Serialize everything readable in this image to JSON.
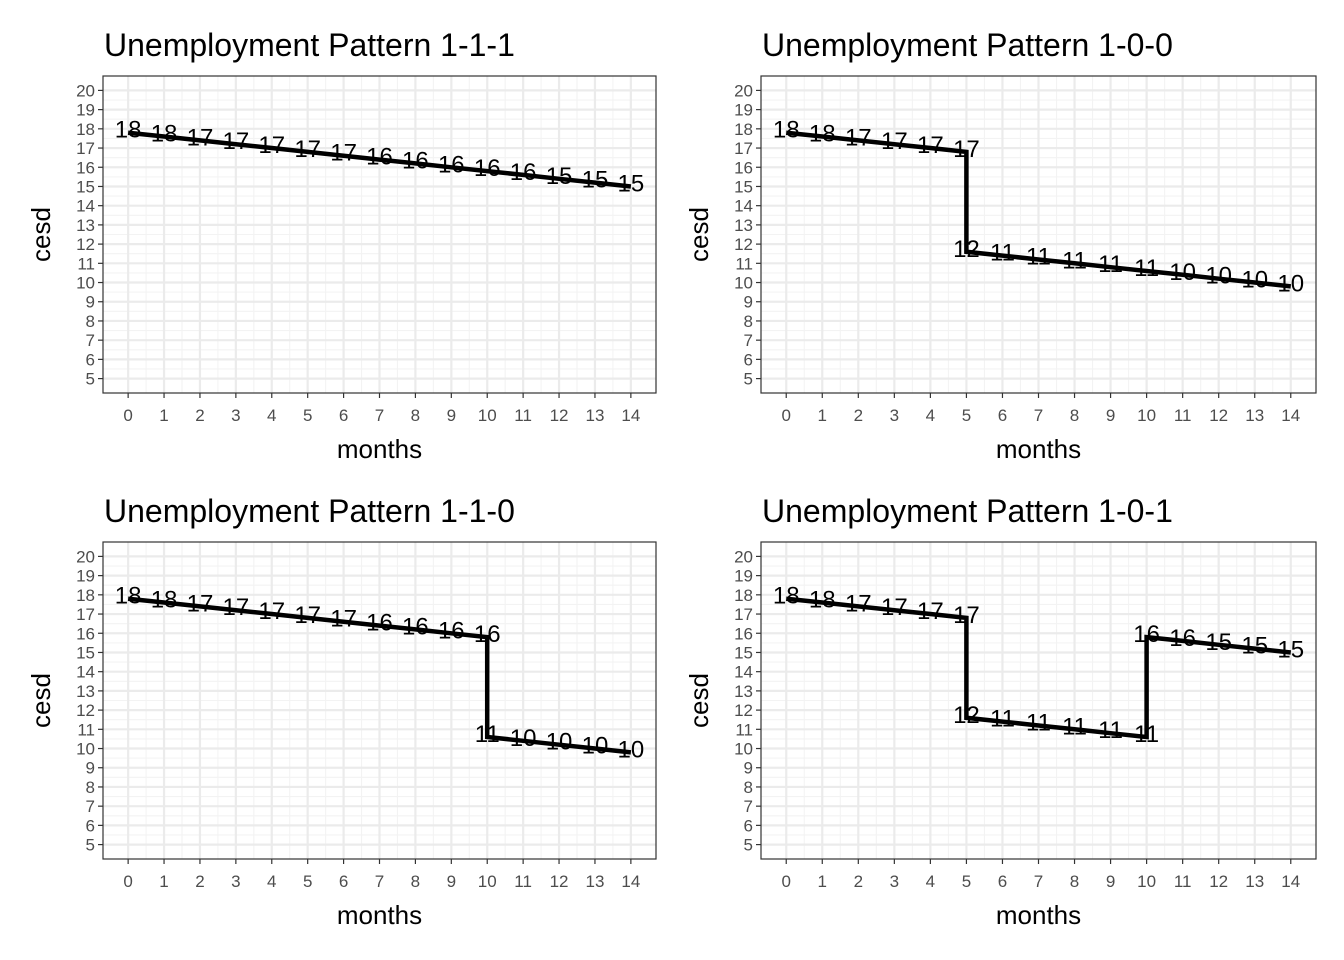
{
  "chart_data": [
    {
      "type": "line",
      "title": "Unemployment Pattern 1-1-1",
      "xlabel": "months",
      "ylabel": "cesd",
      "xlim": [
        0,
        14
      ],
      "ylim": [
        5,
        20
      ],
      "xticks": [
        "0",
        "1",
        "2",
        "3",
        "4",
        "5",
        "6",
        "7",
        "8",
        "9",
        "10",
        "11",
        "12",
        "13",
        "14"
      ],
      "yticks": [
        "5",
        "6",
        "7",
        "8",
        "9",
        "10",
        "11",
        "12",
        "13",
        "14",
        "15",
        "16",
        "17",
        "18",
        "19",
        "20"
      ],
      "grid": true,
      "series": [
        {
          "segments": [
            {
              "x": [
                0,
                1,
                2,
                3,
                4,
                5,
                6,
                7,
                8,
                9,
                10,
                11,
                12,
                13,
                14
              ],
              "y": [
                17.8,
                17.6,
                17.4,
                17.2,
                17.0,
                16.8,
                16.6,
                16.4,
                16.2,
                16.0,
                15.8,
                15.6,
                15.4,
                15.2,
                15.0
              ]
            }
          ],
          "labels": [
            "18",
            "18",
            "17",
            "17",
            "17",
            "17",
            "17",
            "16",
            "16",
            "16",
            "16",
            "16",
            "15",
            "15",
            "15"
          ]
        }
      ]
    },
    {
      "type": "line",
      "title": "Unemployment Pattern 1-0-0",
      "xlabel": "months",
      "ylabel": "cesd",
      "xlim": [
        0,
        14
      ],
      "ylim": [
        5,
        20
      ],
      "xticks": [
        "0",
        "1",
        "2",
        "3",
        "4",
        "5",
        "6",
        "7",
        "8",
        "9",
        "10",
        "11",
        "12",
        "13",
        "14"
      ],
      "yticks": [
        "5",
        "6",
        "7",
        "8",
        "9",
        "10",
        "11",
        "12",
        "13",
        "14",
        "15",
        "16",
        "17",
        "18",
        "19",
        "20"
      ],
      "grid": true,
      "series": [
        {
          "segments": [
            {
              "x": [
                0,
                1,
                2,
                3,
                4,
                5
              ],
              "y": [
                17.8,
                17.6,
                17.4,
                17.2,
                17.0,
                16.8
              ]
            },
            {
              "x": [
                5,
                6,
                7,
                8,
                9,
                10,
                11,
                12,
                13,
                14
              ],
              "y": [
                11.6,
                11.4,
                11.2,
                11.0,
                10.8,
                10.6,
                10.4,
                10.2,
                10.0,
                9.8
              ]
            }
          ],
          "vertical_jumps": [
            {
              "x": 5,
              "from": 16.8,
              "to": 11.6
            }
          ],
          "labels": [
            "18",
            "18",
            "17",
            "17",
            "17",
            "17",
            "12",
            "11",
            "11",
            "11",
            "11",
            "11",
            "10",
            "10",
            "10",
            "10"
          ]
        }
      ]
    },
    {
      "type": "line",
      "title": "Unemployment Pattern 1-1-0",
      "xlabel": "months",
      "ylabel": "cesd",
      "xlim": [
        0,
        14
      ],
      "ylim": [
        5,
        20
      ],
      "xticks": [
        "0",
        "1",
        "2",
        "3",
        "4",
        "5",
        "6",
        "7",
        "8",
        "9",
        "10",
        "11",
        "12",
        "13",
        "14"
      ],
      "yticks": [
        "5",
        "6",
        "7",
        "8",
        "9",
        "10",
        "11",
        "12",
        "13",
        "14",
        "15",
        "16",
        "17",
        "18",
        "19",
        "20"
      ],
      "grid": true,
      "series": [
        {
          "segments": [
            {
              "x": [
                0,
                1,
                2,
                3,
                4,
                5,
                6,
                7,
                8,
                9,
                10
              ],
              "y": [
                17.8,
                17.6,
                17.4,
                17.2,
                17.0,
                16.8,
                16.6,
                16.4,
                16.2,
                16.0,
                15.8
              ]
            },
            {
              "x": [
                10,
                11,
                12,
                13,
                14
              ],
              "y": [
                10.6,
                10.4,
                10.2,
                10.0,
                9.8
              ]
            }
          ],
          "vertical_jumps": [
            {
              "x": 10,
              "from": 15.8,
              "to": 10.6
            }
          ],
          "labels": [
            "18",
            "18",
            "17",
            "17",
            "17",
            "17",
            "17",
            "16",
            "16",
            "16",
            "16",
            "11",
            "10",
            "10",
            "10",
            "10"
          ]
        }
      ]
    },
    {
      "type": "line",
      "title": "Unemployment Pattern 1-0-1",
      "xlabel": "months",
      "ylabel": "cesd",
      "xlim": [
        0,
        14
      ],
      "ylim": [
        5,
        20
      ],
      "xticks": [
        "0",
        "1",
        "2",
        "3",
        "4",
        "5",
        "6",
        "7",
        "8",
        "9",
        "10",
        "11",
        "12",
        "13",
        "14"
      ],
      "yticks": [
        "5",
        "6",
        "7",
        "8",
        "9",
        "10",
        "11",
        "12",
        "13",
        "14",
        "15",
        "16",
        "17",
        "18",
        "19",
        "20"
      ],
      "grid": true,
      "series": [
        {
          "segments": [
            {
              "x": [
                0,
                1,
                2,
                3,
                4,
                5
              ],
              "y": [
                17.8,
                17.6,
                17.4,
                17.2,
                17.0,
                16.8
              ]
            },
            {
              "x": [
                5,
                6,
                7,
                8,
                9,
                10
              ],
              "y": [
                11.6,
                11.4,
                11.2,
                11.0,
                10.8,
                10.6
              ]
            },
            {
              "x": [
                10,
                11,
                12,
                13,
                14
              ],
              "y": [
                15.8,
                15.6,
                15.4,
                15.2,
                15.0
              ]
            }
          ],
          "vertical_jumps": [
            {
              "x": 5,
              "from": 16.8,
              "to": 11.6
            },
            {
              "x": 10,
              "from": 10.6,
              "to": 15.8
            }
          ],
          "labels": [
            "18",
            "18",
            "17",
            "17",
            "17",
            "17",
            "12",
            "11",
            "11",
            "11",
            "11",
            "11",
            "16",
            "16",
            "15",
            "15",
            "15"
          ]
        }
      ]
    }
  ]
}
